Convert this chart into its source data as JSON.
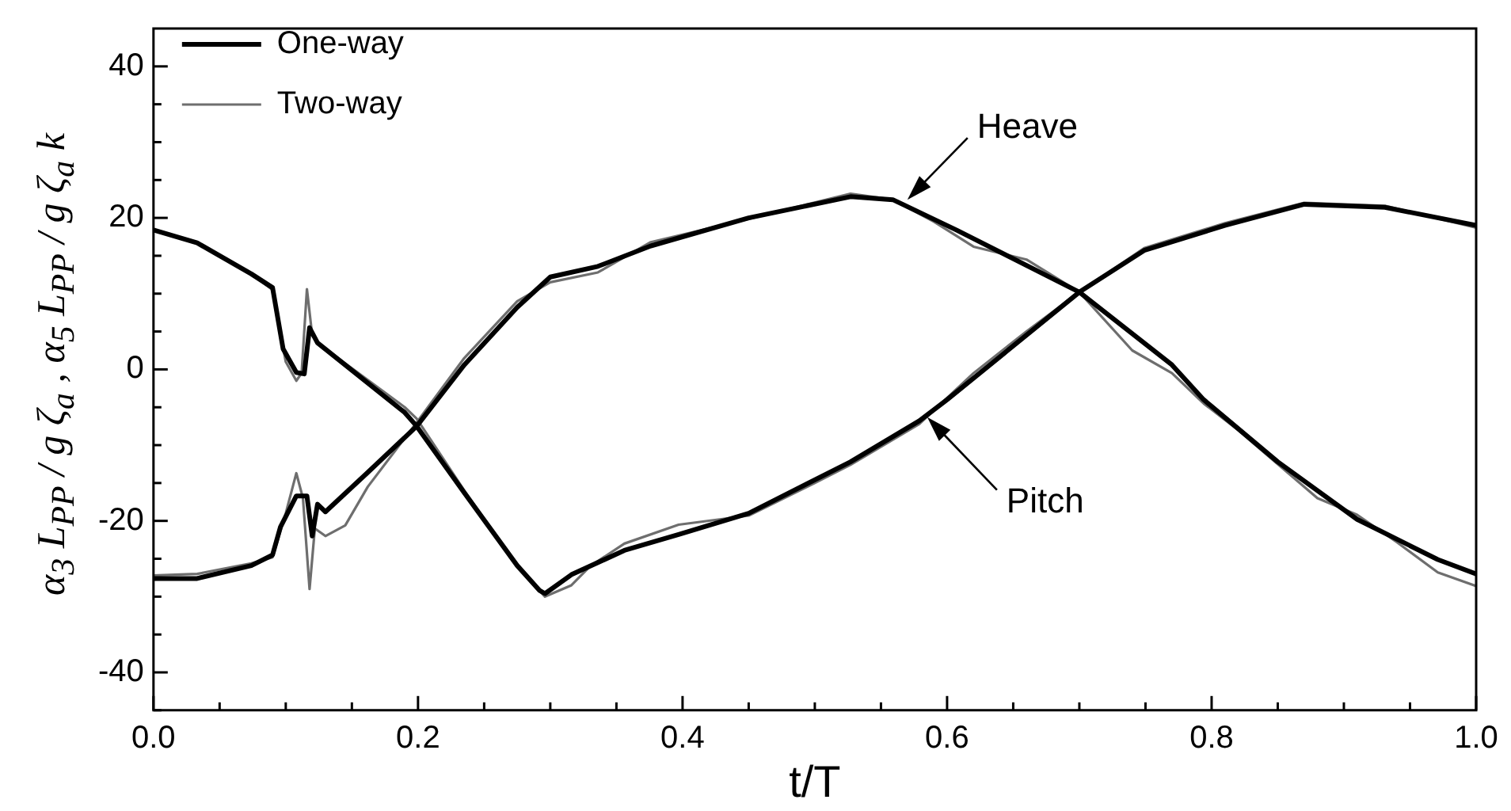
{
  "chart_data": {
    "type": "line",
    "xlabel": "t/T",
    "ylabel": "α$_{3}$ L$_{PP}$ / g ζ$_{a}$ ,  α$_{5}$ L$_{PP}$ / g ζ$_{a}$ k",
    "xlim": [
      0,
      1
    ],
    "ylim": [
      -45,
      45
    ],
    "xticks": [
      {
        "value": 0,
        "label": "0.0"
      },
      {
        "value": 0.05,
        "label": null
      },
      {
        "value": 0.1,
        "label": null
      },
      {
        "value": 0.15,
        "label": null
      },
      {
        "value": 0.2,
        "label": "0.2"
      },
      {
        "value": 0.25,
        "label": null
      },
      {
        "value": 0.3,
        "label": null
      },
      {
        "value": 0.35,
        "label": null
      },
      {
        "value": 0.4,
        "label": "0.4"
      },
      {
        "value": 0.45,
        "label": null
      },
      {
        "value": 0.5,
        "label": null
      },
      {
        "value": 0.55,
        "label": null
      },
      {
        "value": 0.6,
        "label": "0.6"
      },
      {
        "value": 0.65,
        "label": null
      },
      {
        "value": 0.7,
        "label": null
      },
      {
        "value": 0.75,
        "label": null
      },
      {
        "value": 0.8,
        "label": "0.8"
      },
      {
        "value": 0.85,
        "label": null
      },
      {
        "value": 0.9,
        "label": null
      },
      {
        "value": 0.95,
        "label": null
      },
      {
        "value": 1,
        "label": "1.0"
      }
    ],
    "yticks": [
      {
        "value": -45,
        "label": null
      },
      -40,
      {
        "value": -35,
        "label": null
      },
      {
        "value": -30,
        "label": null
      },
      {
        "value": -25,
        "label": null
      },
      -20,
      {
        "value": -15,
        "label": null
      },
      {
        "value": -10,
        "label": null
      },
      {
        "value": -5,
        "label": null
      },
      0,
      {
        "value": 5,
        "label": null
      },
      {
        "value": 10,
        "label": null
      },
      {
        "value": 15,
        "label": null
      },
      20,
      {
        "value": 25,
        "label": null
      },
      {
        "value": 30,
        "label": null
      },
      {
        "value": 35,
        "label": null
      },
      40
    ],
    "grid": false,
    "legend": "top left",
    "marker": "none",
    "line_style": "solid",
    "annotations": [
      {
        "text": "Heave",
        "x": 0.57,
        "y": 22.4
      },
      {
        "text": "Pitch",
        "x": 0.585,
        "y": -6.3
      }
    ],
    "series": [
      {
        "name": "One-way",
        "color": "#000000",
        "x": [
          0,
          0.033,
          0.074,
          0.09,
          0.096,
          0.108,
          0.116,
          0.12,
          0.124,
          0.13,
          0.162,
          0.199,
          0.235,
          0.275,
          0.3,
          0.336,
          0.376,
          0.45,
          0.527,
          0.559,
          0.607,
          0.7,
          0.77,
          0.794,
          0.85,
          0.91,
          0.971,
          1
        ],
        "values": [
          -27.6,
          -27.6,
          -25.9,
          -24.5,
          -20.8,
          -16.7,
          -16.7,
          -22,
          -17.8,
          -18.8,
          -13.6,
          -7.5,
          0.6,
          8.2,
          12.2,
          13.6,
          16.3,
          20,
          22.8,
          22.4,
          18.4,
          10.2,
          0.6,
          -4,
          -12.2,
          -19.8,
          -25.1,
          -27
        ]
      },
      {
        "name": "Two-way",
        "color": "#6e6e6e",
        "x": [
          0,
          0.033,
          0.074,
          0.09,
          0.1,
          0.108,
          0.113,
          0.118,
          0.122,
          0.13,
          0.145,
          0.162,
          0.199,
          0.235,
          0.275,
          0.3,
          0.336,
          0.376,
          0.41,
          0.453,
          0.527,
          0.559,
          0.59,
          0.62,
          0.66,
          0.7,
          0.74,
          0.77,
          0.794,
          0.82,
          0.85,
          0.88,
          0.91,
          0.94,
          0.971,
          1
        ],
        "values": [
          -27.2,
          -27,
          -25.6,
          -24.8,
          -19,
          -13.7,
          -17,
          -29,
          -21,
          -22,
          -20.6,
          -15.5,
          -7,
          1.5,
          9,
          11.5,
          12.8,
          16.8,
          18.2,
          20,
          23.2,
          22.4,
          19.5,
          16.2,
          14.5,
          10.2,
          2.5,
          -0.5,
          -4.5,
          -8,
          -12.5,
          -17,
          -19.2,
          -22.8,
          -26.8,
          -28.6
        ]
      },
      {
        "color": "#000000",
        "x": [
          0,
          0.033,
          0.074,
          0.09,
          0.098,
          0.108,
          0.114,
          0.118,
          0.124,
          0.19,
          0.199,
          0.235,
          0.275,
          0.292,
          0.296,
          0.316,
          0.356,
          0.397,
          0.45,
          0.527,
          0.579,
          0.6,
          0.7,
          0.749,
          0.81,
          0.87,
          0.931,
          1
        ],
        "values": [
          18.4,
          16.7,
          12.6,
          10.8,
          2.7,
          -0.4,
          -0.6,
          5.5,
          3.5,
          -5.7,
          -7.5,
          -16.3,
          -25.9,
          -29.2,
          -29.6,
          -27.1,
          -23.9,
          -21.8,
          -19,
          -12.2,
          -6.8,
          -4,
          10.2,
          15.7,
          19,
          21.8,
          21.4,
          19
        ]
      },
      {
        "color": "#6e6e6e",
        "x": [
          0,
          0.033,
          0.074,
          0.09,
          0.1,
          0.108,
          0.112,
          0.116,
          0.12,
          0.124,
          0.19,
          0.199,
          0.235,
          0.275,
          0.296,
          0.316,
          0.33,
          0.356,
          0.397,
          0.45,
          0.5,
          0.527,
          0.579,
          0.62,
          0.66,
          0.7,
          0.749,
          0.81,
          0.87,
          0.931,
          1
        ],
        "values": [
          18.4,
          16.7,
          12.6,
          10.5,
          1,
          -1.5,
          -0.5,
          10.6,
          4.5,
          3.5,
          -5,
          -6.5,
          -16,
          -26,
          -30,
          -28.5,
          -26,
          -23,
          -20.5,
          -19.3,
          -15,
          -12.6,
          -7.2,
          -0.5,
          5,
          10.2,
          16,
          19.3,
          22,
          21.6,
          18.7
        ]
      }
    ]
  }
}
